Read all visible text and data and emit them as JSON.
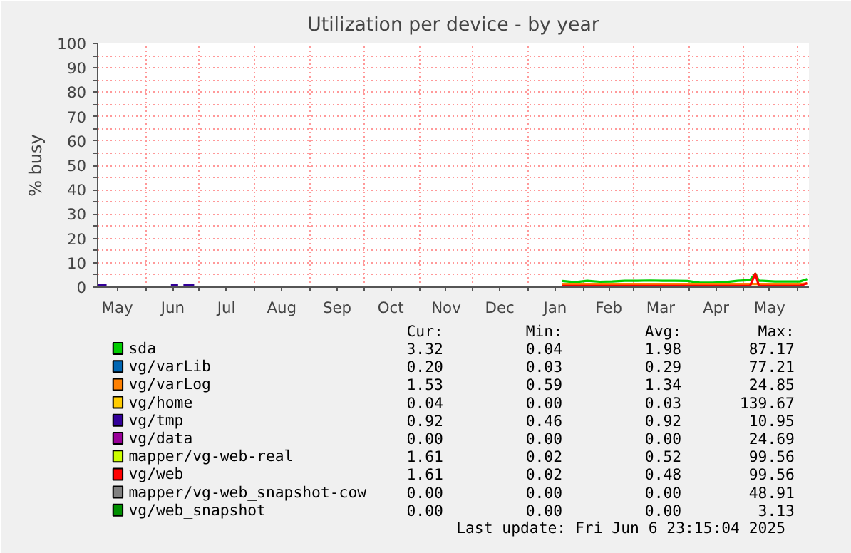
{
  "chart_data": {
    "type": "line",
    "title": "Utilization per device - by year",
    "ylabel": "% busy",
    "x": [
      "2024-05-05",
      "2024-05-10",
      "2024-05-11",
      "2024-06-15",
      "2024-06-19",
      "2024-06-20",
      "2024-06-22",
      "2024-06-28",
      "2024-06-29",
      "2025-01-20",
      "2025-01-27",
      "2025-02-03",
      "2025-02-10",
      "2025-02-17",
      "2025-02-24",
      "2025-03-03",
      "2025-03-10",
      "2025-03-17",
      "2025-03-24",
      "2025-03-31",
      "2025-04-07",
      "2025-04-14",
      "2025-04-21",
      "2025-04-28",
      "2025-05-05",
      "2025-05-08",
      "2025-05-10",
      "2025-05-12",
      "2025-05-19",
      "2025-05-26",
      "2025-06-02",
      "2025-06-06"
    ],
    "series": [
      {
        "name": "sda",
        "color": "#00cc00",
        "values": [
          null,
          null,
          null,
          null,
          null,
          null,
          null,
          null,
          null,
          2.5,
          2.0,
          2.6,
          2.2,
          2.3,
          2.6,
          2.6,
          2.7,
          2.6,
          2.6,
          2.5,
          1.8,
          1.8,
          2.0,
          2.6,
          2.9,
          5.5,
          2.6,
          2.6,
          2.3,
          2.3,
          2.3,
          3.3
        ]
      },
      {
        "name": "vg/varLib",
        "color": "#0066b3",
        "values": [
          null,
          null,
          null,
          null,
          null,
          null,
          null,
          null,
          null,
          null,
          null,
          null,
          null,
          null,
          null,
          null,
          null,
          null,
          null,
          null,
          null,
          null,
          null,
          null,
          null,
          null,
          null,
          null,
          null,
          null,
          null,
          null
        ]
      },
      {
        "name": "vg/varLog",
        "color": "#ff8000",
        "values": [
          null,
          null,
          null,
          null,
          null,
          null,
          null,
          null,
          null,
          1.3,
          1.3,
          1.3,
          1.3,
          1.3,
          1.3,
          1.3,
          1.3,
          1.3,
          1.3,
          1.3,
          1.3,
          1.3,
          1.3,
          1.3,
          1.3,
          1.3,
          1.3,
          1.3,
          1.3,
          1.3,
          1.3,
          1.5
        ]
      },
      {
        "name": "vg/home",
        "color": "#ffcc00",
        "values": [
          null,
          null,
          null,
          null,
          null,
          null,
          null,
          null,
          null,
          null,
          null,
          null,
          null,
          null,
          null,
          null,
          null,
          null,
          null,
          null,
          null,
          null,
          null,
          null,
          null,
          null,
          null,
          null,
          null,
          null,
          null,
          null
        ]
      },
      {
        "name": "vg/tmp",
        "color": "#330099",
        "values": [
          1.0,
          1.0,
          null,
          1.0,
          1.0,
          null,
          1.0,
          1.0,
          null,
          null,
          null,
          null,
          null,
          null,
          null,
          null,
          null,
          null,
          null,
          null,
          null,
          null,
          null,
          null,
          null,
          null,
          null,
          null,
          null,
          null,
          null,
          null
        ]
      },
      {
        "name": "vg/data",
        "color": "#990099",
        "values": [
          null,
          null,
          null,
          null,
          null,
          null,
          null,
          null,
          null,
          null,
          null,
          null,
          null,
          null,
          null,
          null,
          null,
          null,
          null,
          null,
          null,
          null,
          null,
          null,
          null,
          null,
          null,
          null,
          null,
          null,
          null,
          null
        ]
      },
      {
        "name": "mapper/vg-web-real",
        "color": "#ccff00",
        "values": [
          null,
          null,
          null,
          null,
          null,
          null,
          null,
          null,
          null,
          null,
          null,
          null,
          null,
          null,
          null,
          null,
          null,
          null,
          null,
          null,
          null,
          null,
          null,
          null,
          null,
          null,
          null,
          null,
          null,
          null,
          null,
          null
        ]
      },
      {
        "name": "vg/web",
        "color": "#ff0000",
        "values": [
          null,
          null,
          null,
          null,
          null,
          null,
          null,
          null,
          null,
          0.5,
          0.5,
          0.5,
          0.5,
          0.5,
          0.5,
          0.5,
          0.5,
          0.5,
          0.5,
          0.5,
          0.5,
          0.5,
          0.5,
          0.5,
          0.5,
          5.5,
          0.5,
          0.5,
          0.5,
          0.5,
          0.5,
          1.6
        ]
      },
      {
        "name": "mapper/vg-web_snapshot-cow",
        "color": "#808080",
        "values": [
          null,
          null,
          null,
          null,
          null,
          null,
          null,
          null,
          null,
          null,
          null,
          null,
          null,
          null,
          null,
          null,
          null,
          null,
          null,
          null,
          null,
          null,
          null,
          null,
          null,
          null,
          null,
          null,
          null,
          null,
          null,
          null
        ]
      },
      {
        "name": "vg/web_snapshot",
        "color": "#008f00",
        "values": [
          null,
          null,
          null,
          null,
          null,
          null,
          null,
          null,
          null,
          null,
          null,
          null,
          null,
          null,
          null,
          null,
          null,
          null,
          null,
          null,
          null,
          null,
          null,
          null,
          null,
          null,
          null,
          null,
          null,
          null,
          null,
          null
        ]
      }
    ],
    "xlim": [
      "2024-05-05",
      "2025-06-07"
    ],
    "xticks": [
      {
        "value": "2024-05-16",
        "label": "May"
      },
      {
        "value": "2024-06-01",
        "label": null
      },
      {
        "value": "2024-06-16",
        "label": "Jun"
      },
      {
        "value": "2024-07-01",
        "label": null
      },
      {
        "value": "2024-07-16",
        "label": "Jul"
      },
      {
        "value": "2024-08-01",
        "label": null
      },
      {
        "value": "2024-08-16",
        "label": "Aug"
      },
      {
        "value": "2024-09-01",
        "label": null
      },
      {
        "value": "2024-09-16",
        "label": "Sep"
      },
      {
        "value": "2024-10-01",
        "label": null
      },
      {
        "value": "2024-10-16",
        "label": "Oct"
      },
      {
        "value": "2024-11-01",
        "label": null
      },
      {
        "value": "2024-11-16",
        "label": "Nov"
      },
      {
        "value": "2024-12-01",
        "label": null
      },
      {
        "value": "2024-12-16",
        "label": "Dec"
      },
      {
        "value": "2025-01-01",
        "label": null
      },
      {
        "value": "2025-01-16",
        "label": "Jan"
      },
      {
        "value": "2025-02-01",
        "label": null
      },
      {
        "value": "2025-02-15",
        "label": "Feb"
      },
      {
        "value": "2025-03-01",
        "label": null
      },
      {
        "value": "2025-03-16",
        "label": "Mar"
      },
      {
        "value": "2025-04-01",
        "label": null
      },
      {
        "value": "2025-04-16",
        "label": "Apr"
      },
      {
        "value": "2025-05-01",
        "label": null
      },
      {
        "value": "2025-05-16",
        "label": "May"
      },
      {
        "value": "2025-06-01",
        "label": null
      }
    ],
    "ylim": [
      0,
      100
    ],
    "yticks": [
      0,
      {
        "value": 5,
        "label": null
      },
      10,
      {
        "value": 15,
        "label": null
      },
      20,
      {
        "value": 25,
        "label": null
      },
      30,
      {
        "value": 35,
        "label": null
      },
      40,
      {
        "value": 45,
        "label": null
      },
      50,
      {
        "value": 55,
        "label": null
      },
      60,
      {
        "value": 65,
        "label": null
      },
      70,
      {
        "value": 75,
        "label": null
      },
      80,
      {
        "value": 85,
        "label": null
      },
      90,
      {
        "value": 95,
        "label": null
      },
      100
    ],
    "grid": true,
    "legend": "bottom",
    "line_style": "solid",
    "annotations": [
      "Cur:",
      "Min:",
      "Avg:",
      "Max:",
      "3.32",
      "0.04",
      "1.98",
      "87.17",
      "0.20",
      "0.03",
      "0.29",
      "77.21",
      "1.53",
      "0.59",
      "1.34",
      "24.85",
      "0.04",
      "0.00",
      "0.03",
      "139.67",
      "0.92",
      "0.46",
      "0.92",
      "10.95",
      "0.00",
      "0.00",
      "0.00",
      "24.69",
      "1.61",
      "0.02",
      "0.52",
      "99.56",
      "1.61",
      "0.02",
      "0.48",
      "99.56",
      "0.00",
      "0.00",
      "0.00",
      "48.91",
      "0.00",
      "0.00",
      "0.00",
      "3.13",
      "Last update: Fri Jun  6 23:15:04 2025"
    ]
  }
}
